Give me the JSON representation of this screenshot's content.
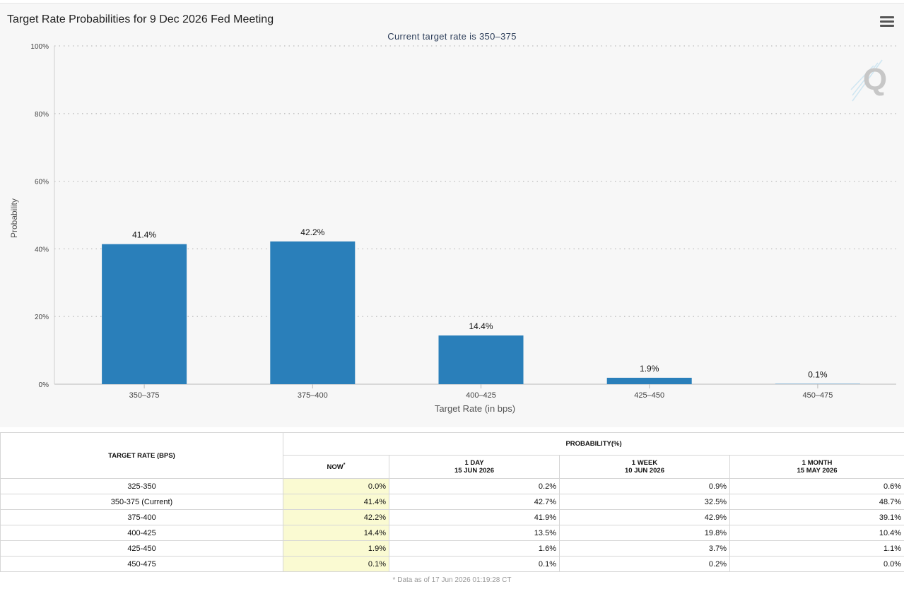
{
  "header": {
    "title": "Target Rate Probabilities for 9 Dec 2026 Fed Meeting",
    "subtitle": "Current target rate is 350–375",
    "menu_icon": "hamburger-menu-icon",
    "logo_letter": "Q"
  },
  "chart_data": {
    "type": "bar",
    "title": "Target Rate Probabilities for 9 Dec 2026 Fed Meeting",
    "subtitle": "Current target rate is 350–375",
    "categories": [
      "350–375",
      "375–400",
      "400–425",
      "425–450",
      "450–475"
    ],
    "values": [
      41.4,
      42.2,
      14.4,
      1.9,
      0.1
    ],
    "data_labels": [
      "41.4%",
      "42.2%",
      "14.4%",
      "1.9%",
      "0.1%"
    ],
    "xlabel": "Target Rate (in bps)",
    "ylabel": "Probability",
    "ylim": [
      0,
      100
    ],
    "y_ticks": [
      0,
      20,
      40,
      60,
      80,
      100
    ],
    "y_tick_labels": [
      "0%",
      "20%",
      "40%",
      "60%",
      "80%",
      "100%"
    ],
    "grid": true,
    "bar_color": "#2a7fba"
  },
  "table": {
    "rate_header": "TARGET RATE (BPS)",
    "prob_header": "PROBABILITY(%)",
    "columns": [
      {
        "line1": "NOW",
        "line2": "",
        "mark": "*"
      },
      {
        "line1": "1 DAY",
        "line2": "15 JUN 2026",
        "mark": ""
      },
      {
        "line1": "1 WEEK",
        "line2": "10 JUN 2026",
        "mark": ""
      },
      {
        "line1": "1 MONTH",
        "line2": "15 MAY 2026",
        "mark": ""
      }
    ],
    "rows": [
      {
        "rate": "325-350",
        "now": "0.0%",
        "day": "0.2%",
        "week": "0.9%",
        "month": "0.6%"
      },
      {
        "rate": "350-375 (Current)",
        "now": "41.4%",
        "day": "42.7%",
        "week": "32.5%",
        "month": "48.7%"
      },
      {
        "rate": "375-400",
        "now": "42.2%",
        "day": "41.9%",
        "week": "42.9%",
        "month": "39.1%"
      },
      {
        "rate": "400-425",
        "now": "14.4%",
        "day": "13.5%",
        "week": "19.8%",
        "month": "10.4%"
      },
      {
        "rate": "425-450",
        "now": "1.9%",
        "day": "1.6%",
        "week": "3.7%",
        "month": "1.1%"
      },
      {
        "rate": "450-475",
        "now": "0.1%",
        "day": "0.1%",
        "week": "0.2%",
        "month": "0.0%"
      }
    ],
    "footnote": "* Data as of 17 Jun 2026 01:19:28 CT"
  }
}
